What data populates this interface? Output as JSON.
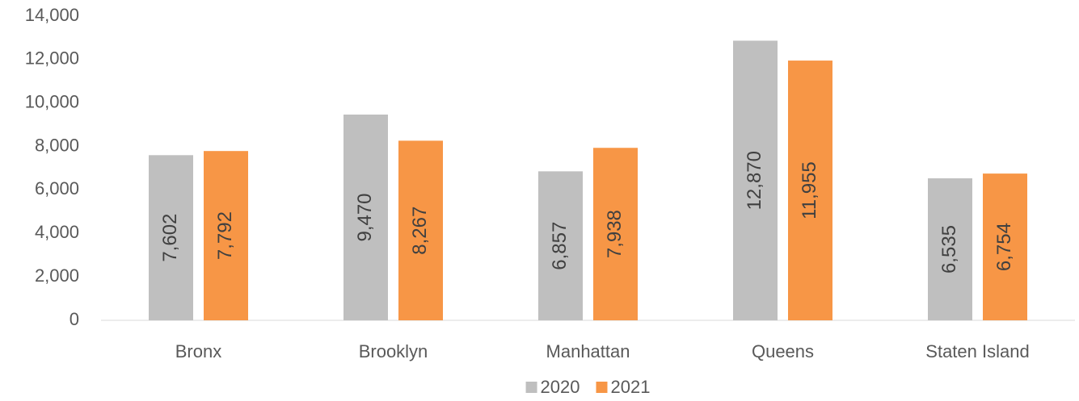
{
  "chart_data": {
    "type": "bar",
    "categories": [
      "Bronx",
      "Brooklyn",
      "Manhattan",
      "Queens",
      "Staten Island"
    ],
    "series": [
      {
        "name": "2020",
        "color": "#bfbfbf",
        "values": [
          7602,
          9470,
          6857,
          12870,
          6535
        ],
        "value_labels": [
          "7,602",
          "9,470",
          "6,857",
          "12,870",
          "6,535"
        ]
      },
      {
        "name": "2021",
        "color": "#f79646",
        "values": [
          7792,
          8267,
          7938,
          11955,
          6754
        ],
        "value_labels": [
          "7,792",
          "8,267",
          "7,938",
          "11,955",
          "6,754"
        ]
      }
    ],
    "ylim": [
      0,
      14000
    ],
    "yticks": [
      0,
      {
        "value": 2000,
        "label": "2,000"
      },
      {
        "value": 4000,
        "label": "4,000"
      },
      {
        "value": 6000,
        "label": "6,000"
      },
      {
        "value": 8000,
        "label": "8,000"
      },
      {
        "value": 10000,
        "label": "10,000"
      },
      {
        "value": 12000,
        "label": "12,000"
      },
      {
        "value": 14000,
        "label": "14,000"
      }
    ],
    "grid": false,
    "legend": "bottom"
  }
}
